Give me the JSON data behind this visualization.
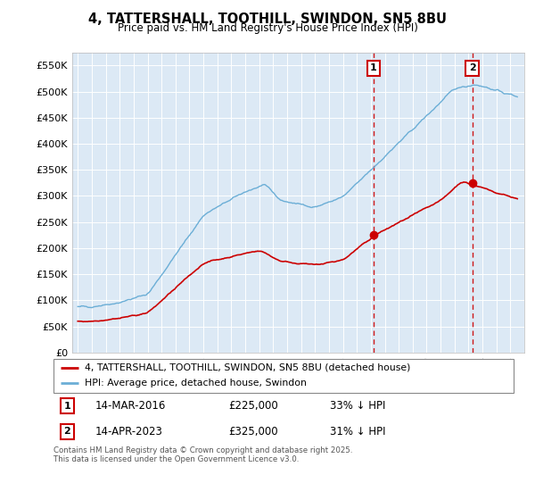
{
  "title": "4, TATTERSHALL, TOOTHILL, SWINDON, SN5 8BU",
  "subtitle": "Price paid vs. HM Land Registry's House Price Index (HPI)",
  "legend_line1": "4, TATTERSHALL, TOOTHILL, SWINDON, SN5 8BU (detached house)",
  "legend_line2": "HPI: Average price, detached house, Swindon",
  "footer": "Contains HM Land Registry data © Crown copyright and database right 2025.\nThis data is licensed under the Open Government Licence v3.0.",
  "marker1_date": "14-MAR-2016",
  "marker1_price": 225000,
  "marker1_pct": "33% ↓ HPI",
  "marker2_date": "14-APR-2023",
  "marker2_price": 325000,
  "marker2_pct": "31% ↓ HPI",
  "hpi_color": "#6baed6",
  "price_color": "#cc0000",
  "marker_color": "#cc0000",
  "vline_color": "#cc0000",
  "plot_bg_color": "#dce9f5",
  "ylim": [
    0,
    575000
  ],
  "yticks": [
    0,
    50000,
    100000,
    150000,
    200000,
    250000,
    300000,
    350000,
    400000,
    450000,
    500000,
    550000
  ],
  "year_start": 1995,
  "year_end": 2026,
  "sale1_year": 2016.2,
  "sale2_year": 2023.28,
  "sale1_price": 225000,
  "sale2_price": 325000
}
